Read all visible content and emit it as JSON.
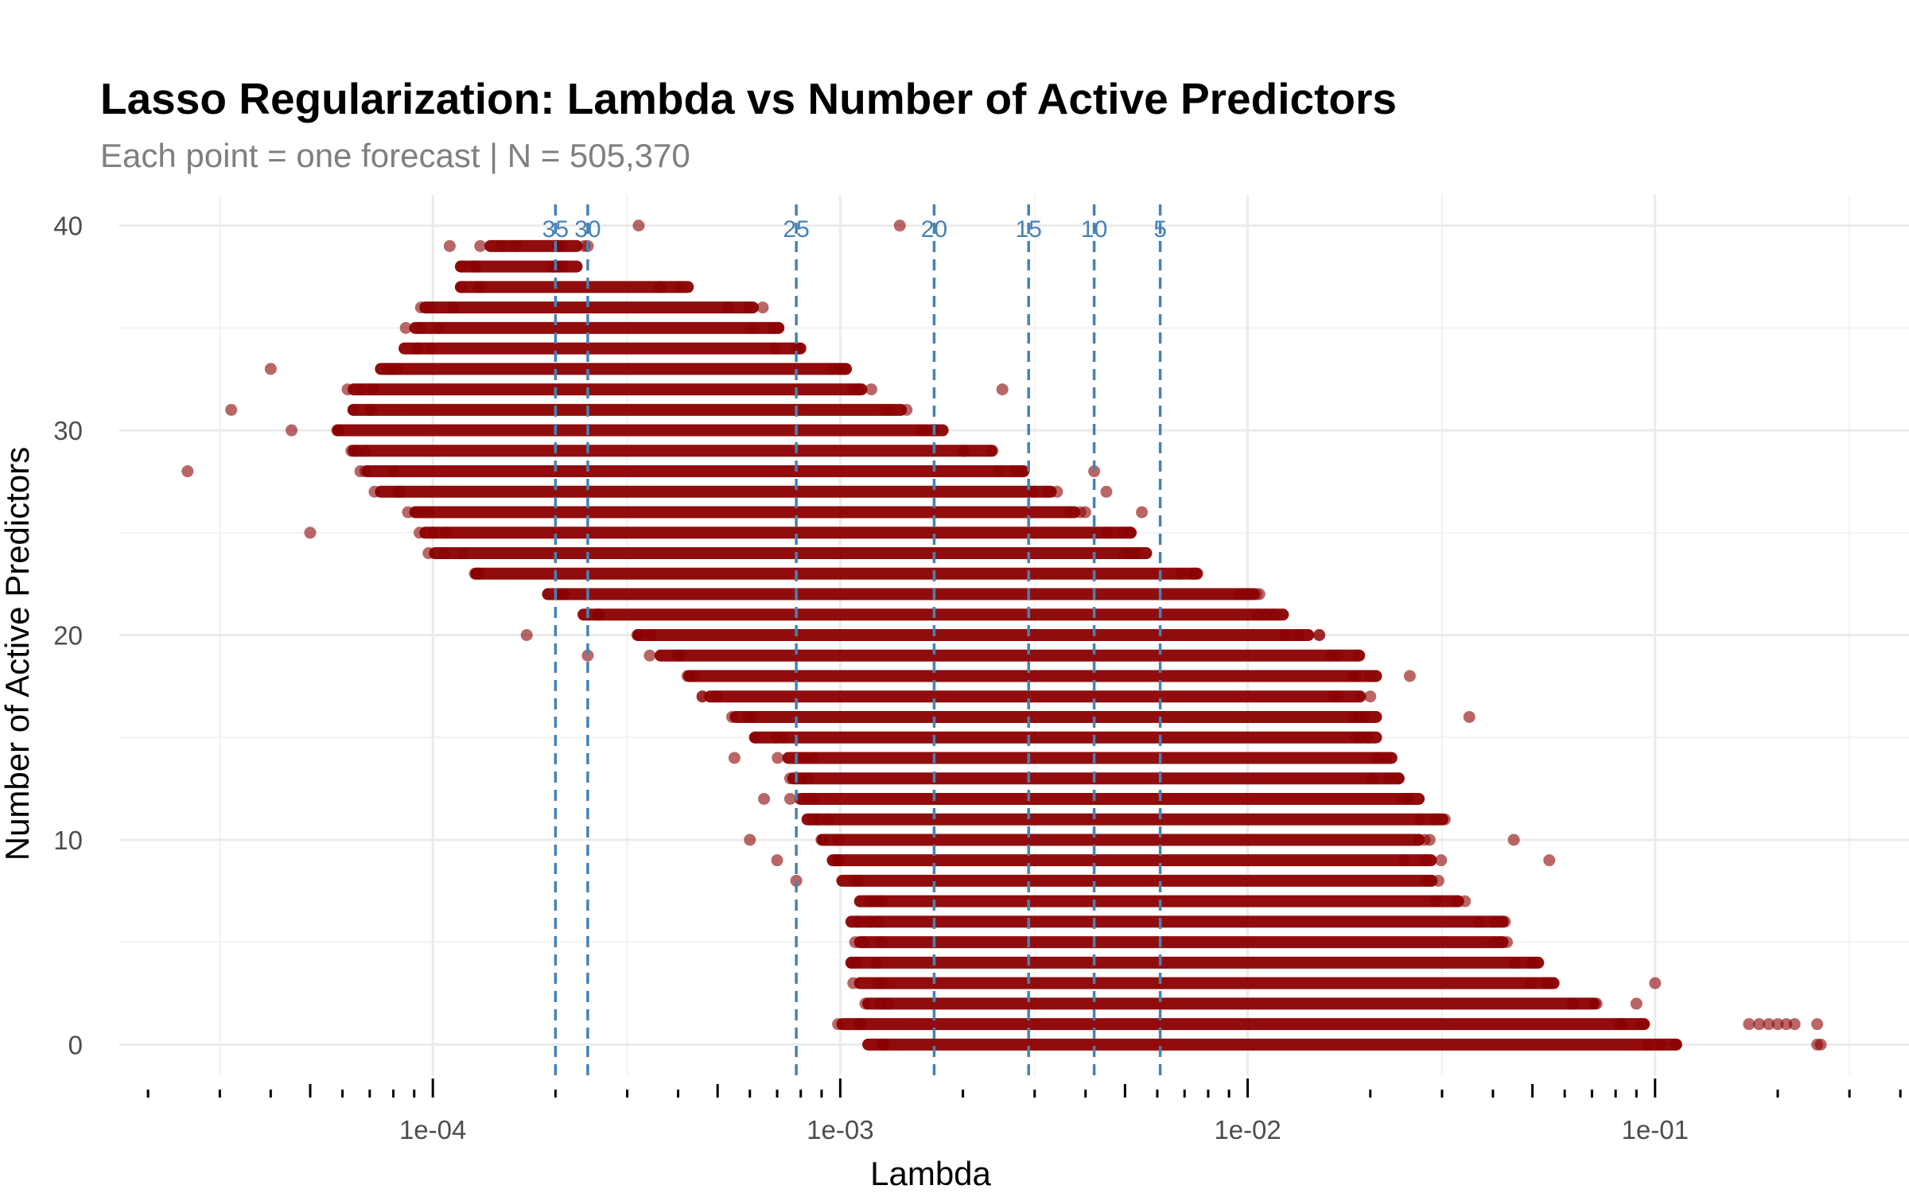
{
  "chart_data": {
    "type": "scatter",
    "title": "Lasso Regularization: Lambda vs Number of Active Predictors",
    "subtitle": "Each point = one forecast | N = 505,370",
    "xlabel": "Lambda",
    "ylabel": "Number of Active Predictors",
    "x_scale": "log10",
    "xlim": [
      1.7e-05,
      0.42
    ],
    "ylim": [
      -1.5,
      41.5
    ],
    "x_ticks": [
      0.0001,
      0.001,
      0.01,
      0.1
    ],
    "x_tick_labels": [
      "1e-04",
      "1e-03",
      "1e-02",
      "1e-01"
    ],
    "y_ticks": [
      0,
      10,
      20,
      30,
      40
    ],
    "y_tick_labels": [
      "0",
      "10",
      "20",
      "30",
      "40"
    ],
    "grid": true,
    "point_color": "#8B0000",
    "reference_color": "#4682B4",
    "reference_lines": [
      {
        "label": "35",
        "lambda": 0.0002
      },
      {
        "label": "30",
        "lambda": 0.00024
      },
      {
        "label": "25",
        "lambda": 0.00078
      },
      {
        "label": "20",
        "lambda": 0.0017
      },
      {
        "label": "15",
        "lambda": 0.0029
      },
      {
        "label": "10",
        "lambda": 0.0042
      },
      {
        "label": "5",
        "lambda": 0.0061
      }
    ],
    "point_bands": [
      {
        "y": 0,
        "lambda_range": [
          0.0011,
          0.12
        ]
      },
      {
        "y": 1,
        "lambda_range": [
          0.00095,
          0.1
        ]
      },
      {
        "y": 2,
        "lambda_range": [
          0.0011,
          0.075
        ]
      },
      {
        "y": 3,
        "lambda_range": [
          0.00105,
          0.06
        ]
      },
      {
        "y": 4,
        "lambda_range": [
          0.001,
          0.055
        ]
      },
      {
        "y": 5,
        "lambda_range": [
          0.00105,
          0.045
        ]
      },
      {
        "y": 6,
        "lambda_range": [
          0.001,
          0.045
        ]
      },
      {
        "y": 7,
        "lambda_range": [
          0.00105,
          0.035
        ]
      },
      {
        "y": 8,
        "lambda_range": [
          0.00095,
          0.03
        ]
      },
      {
        "y": 9,
        "lambda_range": [
          0.0009,
          0.03
        ]
      },
      {
        "y": 10,
        "lambda_range": [
          0.00085,
          0.028
        ]
      },
      {
        "y": 11,
        "lambda_range": [
          0.00078,
          0.032
        ]
      },
      {
        "y": 12,
        "lambda_range": [
          0.00075,
          0.028
        ]
      },
      {
        "y": 13,
        "lambda_range": [
          0.00072,
          0.025
        ]
      },
      {
        "y": 14,
        "lambda_range": [
          0.0007,
          0.024
        ]
      },
      {
        "y": 15,
        "lambda_range": [
          0.00058,
          0.022
        ]
      },
      {
        "y": 16,
        "lambda_range": [
          0.00052,
          0.022
        ]
      },
      {
        "y": 17,
        "lambda_range": [
          0.00045,
          0.02
        ]
      },
      {
        "y": 18,
        "lambda_range": [
          0.0004,
          0.022
        ]
      },
      {
        "y": 19,
        "lambda_range": [
          0.00034,
          0.02
        ]
      },
      {
        "y": 20,
        "lambda_range": [
          0.0003,
          0.015
        ]
      },
      {
        "y": 21,
        "lambda_range": [
          0.00022,
          0.013
        ]
      },
      {
        "y": 22,
        "lambda_range": [
          0.00018,
          0.011
        ]
      },
      {
        "y": 23,
        "lambda_range": [
          0.00012,
          0.008
        ]
      },
      {
        "y": 24,
        "lambda_range": [
          9.5e-05,
          0.006
        ]
      },
      {
        "y": 25,
        "lambda_range": [
          9e-05,
          0.0055
        ]
      },
      {
        "y": 26,
        "lambda_range": [
          8.5e-05,
          0.004
        ]
      },
      {
        "y": 27,
        "lambda_range": [
          7e-05,
          0.0035
        ]
      },
      {
        "y": 28,
        "lambda_range": [
          6.5e-05,
          0.003
        ]
      },
      {
        "y": 29,
        "lambda_range": [
          6e-05,
          0.0025
        ]
      },
      {
        "y": 30,
        "lambda_range": [
          5.5e-05,
          0.0019
        ]
      },
      {
        "y": 31,
        "lambda_range": [
          6e-05,
          0.0015
        ]
      },
      {
        "y": 32,
        "lambda_range": [
          6e-05,
          0.0012
        ]
      },
      {
        "y": 33,
        "lambda_range": [
          7e-05,
          0.0011
        ]
      },
      {
        "y": 34,
        "lambda_range": [
          8e-05,
          0.00085
        ]
      },
      {
        "y": 35,
        "lambda_range": [
          8.5e-05,
          0.00075
        ]
      },
      {
        "y": 36,
        "lambda_range": [
          9e-05,
          0.00065
        ]
      },
      {
        "y": 37,
        "lambda_range": [
          0.00011,
          0.00045
        ]
      },
      {
        "y": 38,
        "lambda_range": [
          0.00011,
          0.00024
        ]
      },
      {
        "y": 39,
        "lambda_range": [
          0.00013,
          0.00024
        ]
      }
    ],
    "outlier_points": [
      {
        "x": 2.5e-05,
        "y": 28
      },
      {
        "x": 3.2e-05,
        "y": 31
      },
      {
        "x": 4.5e-05,
        "y": 30
      },
      {
        "x": 4e-05,
        "y": 33
      },
      {
        "x": 5e-05,
        "y": 25
      },
      {
        "x": 0.00032,
        "y": 40
      },
      {
        "x": 0.0014,
        "y": 40
      },
      {
        "x": 0.00024,
        "y": 39
      },
      {
        "x": 0.00011,
        "y": 39
      },
      {
        "x": 0.0025,
        "y": 32
      },
      {
        "x": 0.00017,
        "y": 20
      },
      {
        "x": 0.00024,
        "y": 19
      },
      {
        "x": 0.00055,
        "y": 14
      },
      {
        "x": 0.00065,
        "y": 12
      },
      {
        "x": 0.0006,
        "y": 10
      },
      {
        "x": 0.0007,
        "y": 9
      },
      {
        "x": 0.00078,
        "y": 8
      },
      {
        "x": 0.0042,
        "y": 28
      },
      {
        "x": 0.0045,
        "y": 27
      },
      {
        "x": 0.0055,
        "y": 26
      },
      {
        "x": 0.0095,
        "y": 22
      },
      {
        "x": 0.015,
        "y": 20
      },
      {
        "x": 0.025,
        "y": 18
      },
      {
        "x": 0.02,
        "y": 17
      },
      {
        "x": 0.035,
        "y": 16
      },
      {
        "x": 0.045,
        "y": 10
      },
      {
        "x": 0.055,
        "y": 9
      },
      {
        "x": 0.1,
        "y": 3
      },
      {
        "x": 0.09,
        "y": 2
      },
      {
        "x": 0.17,
        "y": 1
      },
      {
        "x": 0.18,
        "y": 1
      },
      {
        "x": 0.19,
        "y": 1
      },
      {
        "x": 0.2,
        "y": 1
      },
      {
        "x": 0.21,
        "y": 1
      },
      {
        "x": 0.22,
        "y": 1
      },
      {
        "x": 0.25,
        "y": 1
      },
      {
        "x": 0.25,
        "y": 0
      },
      {
        "x": 0.255,
        "y": 0
      }
    ]
  }
}
